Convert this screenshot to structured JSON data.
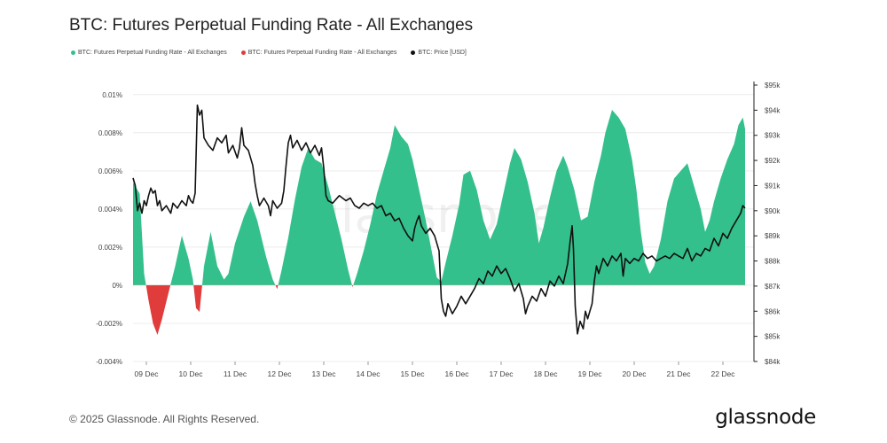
{
  "header": {
    "title": "BTC: Futures Perpetual Funding Rate - All Exchanges"
  },
  "legend": [
    {
      "label": "BTC: Futures Perpetual Funding Rate - All Exchanges",
      "color": "#33c08c"
    },
    {
      "label": "BTC: Futures Perpetual Funding Rate - All Exchanges",
      "color": "#e03c3c"
    },
    {
      "label": "BTC: Price [USD]",
      "color": "#111111"
    }
  ],
  "watermark": "glassnode",
  "footer": {
    "copyright": "© 2025 Glassnode. All Rights Reserved.",
    "brand": "glassnode"
  },
  "chart_data": {
    "type": "area",
    "x_tick_labels": [
      "09 Dec",
      "10 Dec",
      "11 Dec",
      "12 Dec",
      "13 Dec",
      "14 Dec",
      "15 Dec",
      "16 Dec",
      "17 Dec",
      "18 Dec",
      "19 Dec",
      "20 Dec",
      "21 Dec",
      "22 Dec"
    ],
    "y_left": {
      "ticks": [
        -0.004,
        -0.002,
        0,
        0.002,
        0.004,
        0.006,
        0.008,
        0.01
      ],
      "tick_labels": [
        "-0.004%",
        "-0.002%",
        "0%",
        "0.002%",
        "0.004%",
        "0.006%",
        "0.008%",
        "0.01%"
      ],
      "range": [
        -0.004,
        0.0105
      ]
    },
    "y_right": {
      "ticks": [
        84,
        85,
        86,
        87,
        88,
        89,
        90,
        91,
        92,
        93,
        94,
        95
      ],
      "tick_labels": [
        "$84k",
        "$85k",
        "$86k",
        "$87k",
        "$88k",
        "$89k",
        "$90k",
        "$91k",
        "$92k",
        "$93k",
        "$94k",
        "$95k"
      ],
      "range": [
        84,
        95
      ]
    },
    "x_range_days": [
      -0.3,
      13.7
    ],
    "series": [
      {
        "name": "BTC: Futures Perpetual Funding Rate - All Exchanges",
        "axis": "left",
        "color_positive": "#33c08c",
        "color_negative": "#e03c3c",
        "points": [
          [
            -0.3,
            0.0054
          ],
          [
            -0.15,
            0.0048
          ],
          [
            -0.05,
            0.0006
          ],
          [
            0.05,
            -0.0008
          ],
          [
            0.15,
            -0.002
          ],
          [
            0.25,
            -0.0026
          ],
          [
            0.35,
            -0.0018
          ],
          [
            0.5,
            -0.0004
          ],
          [
            0.65,
            0.001
          ],
          [
            0.8,
            0.0026
          ],
          [
            0.95,
            0.0014
          ],
          [
            1.05,
            0.0003
          ],
          [
            1.12,
            -0.0012
          ],
          [
            1.2,
            -0.0014
          ],
          [
            1.3,
            0.001
          ],
          [
            1.45,
            0.0028
          ],
          [
            1.6,
            0.001
          ],
          [
            1.75,
            0.0003
          ],
          [
            1.85,
            0.0006
          ],
          [
            2.0,
            0.0022
          ],
          [
            2.2,
            0.0036
          ],
          [
            2.35,
            0.0044
          ],
          [
            2.5,
            0.0034
          ],
          [
            2.7,
            0.0015
          ],
          [
            2.85,
            0.0003
          ],
          [
            2.95,
            -0.0002
          ],
          [
            3.05,
            0.0008
          ],
          [
            3.2,
            0.0025
          ],
          [
            3.35,
            0.0045
          ],
          [
            3.5,
            0.0062
          ],
          [
            3.65,
            0.0072
          ],
          [
            3.8,
            0.0066
          ],
          [
            3.95,
            0.0064
          ],
          [
            4.1,
            0.0052
          ],
          [
            4.25,
            0.0038
          ],
          [
            4.4,
            0.0024
          ],
          [
            4.55,
            0.0008
          ],
          [
            4.65,
            -0.0001
          ],
          [
            4.75,
            0.0006
          ],
          [
            4.9,
            0.0018
          ],
          [
            5.05,
            0.0032
          ],
          [
            5.2,
            0.0048
          ],
          [
            5.35,
            0.006
          ],
          [
            5.5,
            0.0072
          ],
          [
            5.6,
            0.0084
          ],
          [
            5.75,
            0.0078
          ],
          [
            5.9,
            0.0074
          ],
          [
            6.0,
            0.0066
          ],
          [
            6.15,
            0.005
          ],
          [
            6.3,
            0.0034
          ],
          [
            6.45,
            0.0016
          ],
          [
            6.55,
            0.0004
          ],
          [
            6.65,
            0.0002
          ],
          [
            6.75,
            0.0012
          ],
          [
            6.9,
            0.0026
          ],
          [
            7.05,
            0.0042
          ],
          [
            7.15,
            0.0058
          ],
          [
            7.3,
            0.006
          ],
          [
            7.45,
            0.005
          ],
          [
            7.6,
            0.0034
          ],
          [
            7.75,
            0.0024
          ],
          [
            7.9,
            0.0032
          ],
          [
            8.05,
            0.0048
          ],
          [
            8.2,
            0.0064
          ],
          [
            8.3,
            0.0072
          ],
          [
            8.45,
            0.0066
          ],
          [
            8.6,
            0.0054
          ],
          [
            8.75,
            0.0038
          ],
          [
            8.85,
            0.0022
          ],
          [
            8.95,
            0.003
          ],
          [
            9.1,
            0.0046
          ],
          [
            9.25,
            0.006
          ],
          [
            9.4,
            0.0068
          ],
          [
            9.5,
            0.0062
          ],
          [
            9.65,
            0.005
          ],
          [
            9.8,
            0.0034
          ],
          [
            9.95,
            0.0036
          ],
          [
            10.1,
            0.0054
          ],
          [
            10.25,
            0.0068
          ],
          [
            10.35,
            0.008
          ],
          [
            10.5,
            0.0092
          ],
          [
            10.65,
            0.0088
          ],
          [
            10.8,
            0.0082
          ],
          [
            10.95,
            0.0066
          ],
          [
            11.05,
            0.005
          ],
          [
            11.15,
            0.0028
          ],
          [
            11.25,
            0.0012
          ],
          [
            11.35,
            0.0006
          ],
          [
            11.45,
            0.001
          ],
          [
            11.6,
            0.0024
          ],
          [
            11.75,
            0.0044
          ],
          [
            11.9,
            0.0056
          ],
          [
            12.05,
            0.006
          ],
          [
            12.2,
            0.0064
          ],
          [
            12.35,
            0.0052
          ],
          [
            12.5,
            0.004
          ],
          [
            12.6,
            0.0028
          ],
          [
            12.7,
            0.0034
          ],
          [
            12.8,
            0.0044
          ],
          [
            12.95,
            0.0056
          ],
          [
            13.1,
            0.0066
          ],
          [
            13.25,
            0.0074
          ],
          [
            13.35,
            0.0084
          ],
          [
            13.45,
            0.0088
          ],
          [
            13.5,
            0.0082
          ]
        ]
      },
      {
        "name": "BTC: Price [USD]",
        "axis": "right",
        "color": "#111111",
        "points": [
          [
            -0.3,
            91.3
          ],
          [
            -0.25,
            91.0
          ],
          [
            -0.2,
            90.0
          ],
          [
            -0.15,
            90.3
          ],
          [
            -0.1,
            89.9
          ],
          [
            -0.05,
            90.4
          ],
          [
            0.0,
            90.2
          ],
          [
            0.05,
            90.6
          ],
          [
            0.1,
            90.9
          ],
          [
            0.15,
            90.7
          ],
          [
            0.2,
            90.8
          ],
          [
            0.25,
            90.2
          ],
          [
            0.3,
            90.4
          ],
          [
            0.35,
            90.0
          ],
          [
            0.45,
            90.2
          ],
          [
            0.55,
            89.9
          ],
          [
            0.6,
            90.3
          ],
          [
            0.7,
            90.1
          ],
          [
            0.8,
            90.4
          ],
          [
            0.9,
            90.2
          ],
          [
            0.95,
            90.6
          ],
          [
            1.0,
            90.4
          ],
          [
            1.05,
            90.3
          ],
          [
            1.1,
            90.7
          ],
          [
            1.15,
            94.2
          ],
          [
            1.2,
            93.8
          ],
          [
            1.25,
            94.0
          ],
          [
            1.3,
            92.9
          ],
          [
            1.4,
            92.6
          ],
          [
            1.5,
            92.4
          ],
          [
            1.6,
            92.9
          ],
          [
            1.7,
            92.7
          ],
          [
            1.8,
            93.0
          ],
          [
            1.85,
            92.3
          ],
          [
            1.95,
            92.6
          ],
          [
            2.05,
            92.1
          ],
          [
            2.1,
            92.5
          ],
          [
            2.15,
            93.3
          ],
          [
            2.2,
            92.6
          ],
          [
            2.3,
            92.4
          ],
          [
            2.4,
            91.8
          ],
          [
            2.45,
            91.1
          ],
          [
            2.5,
            90.6
          ],
          [
            2.55,
            90.2
          ],
          [
            2.65,
            90.5
          ],
          [
            2.75,
            90.2
          ],
          [
            2.8,
            89.8
          ],
          [
            2.85,
            90.4
          ],
          [
            2.95,
            90.1
          ],
          [
            3.05,
            90.3
          ],
          [
            3.1,
            90.8
          ],
          [
            3.15,
            91.8
          ],
          [
            3.2,
            92.7
          ],
          [
            3.25,
            93.0
          ],
          [
            3.3,
            92.5
          ],
          [
            3.4,
            92.8
          ],
          [
            3.5,
            92.4
          ],
          [
            3.6,
            92.7
          ],
          [
            3.7,
            92.3
          ],
          [
            3.8,
            92.6
          ],
          [
            3.9,
            92.2
          ],
          [
            3.95,
            92.5
          ],
          [
            4.0,
            91.7
          ],
          [
            4.05,
            90.6
          ],
          [
            4.1,
            90.4
          ],
          [
            4.2,
            90.3
          ],
          [
            4.35,
            90.6
          ],
          [
            4.5,
            90.4
          ],
          [
            4.6,
            90.5
          ],
          [
            4.7,
            90.2
          ],
          [
            4.8,
            90.1
          ],
          [
            4.9,
            90.3
          ],
          [
            5.0,
            90.2
          ],
          [
            5.1,
            90.3
          ],
          [
            5.2,
            90.1
          ],
          [
            5.3,
            90.2
          ],
          [
            5.4,
            89.8
          ],
          [
            5.5,
            89.9
          ],
          [
            5.6,
            89.6
          ],
          [
            5.7,
            89.7
          ],
          [
            5.8,
            89.3
          ],
          [
            5.9,
            89.0
          ],
          [
            6.0,
            88.8
          ],
          [
            6.05,
            89.3
          ],
          [
            6.1,
            89.6
          ],
          [
            6.15,
            89.8
          ],
          [
            6.2,
            89.4
          ],
          [
            6.3,
            89.1
          ],
          [
            6.4,
            89.3
          ],
          [
            6.5,
            89.0
          ],
          [
            6.6,
            88.4
          ],
          [
            6.65,
            86.5
          ],
          [
            6.7,
            86.0
          ],
          [
            6.75,
            85.8
          ],
          [
            6.8,
            86.3
          ],
          [
            6.9,
            85.9
          ],
          [
            7.0,
            86.2
          ],
          [
            7.1,
            86.6
          ],
          [
            7.2,
            86.3
          ],
          [
            7.3,
            86.6
          ],
          [
            7.4,
            86.9
          ],
          [
            7.5,
            87.3
          ],
          [
            7.6,
            87.1
          ],
          [
            7.7,
            87.6
          ],
          [
            7.8,
            87.4
          ],
          [
            7.9,
            87.8
          ],
          [
            8.0,
            87.5
          ],
          [
            8.1,
            87.7
          ],
          [
            8.2,
            87.3
          ],
          [
            8.3,
            86.8
          ],
          [
            8.4,
            87.1
          ],
          [
            8.5,
            86.5
          ],
          [
            8.55,
            85.9
          ],
          [
            8.6,
            86.2
          ],
          [
            8.7,
            86.6
          ],
          [
            8.8,
            86.4
          ],
          [
            8.9,
            86.9
          ],
          [
            9.0,
            86.6
          ],
          [
            9.1,
            87.2
          ],
          [
            9.2,
            87.0
          ],
          [
            9.3,
            87.4
          ],
          [
            9.4,
            87.1
          ],
          [
            9.5,
            87.9
          ],
          [
            9.55,
            88.7
          ],
          [
            9.6,
            89.4
          ],
          [
            9.63,
            88.5
          ],
          [
            9.67,
            86.2
          ],
          [
            9.72,
            85.1
          ],
          [
            9.78,
            85.6
          ],
          [
            9.85,
            85.3
          ],
          [
            9.9,
            86.0
          ],
          [
            9.95,
            85.7
          ],
          [
            10.05,
            86.3
          ],
          [
            10.1,
            87.2
          ],
          [
            10.15,
            87.8
          ],
          [
            10.2,
            87.5
          ],
          [
            10.3,
            88.1
          ],
          [
            10.4,
            87.8
          ],
          [
            10.5,
            88.2
          ],
          [
            10.6,
            88.0
          ],
          [
            10.7,
            88.3
          ],
          [
            10.75,
            87.4
          ],
          [
            10.8,
            88.1
          ],
          [
            10.9,
            87.9
          ],
          [
            11.0,
            88.1
          ],
          [
            11.1,
            88.0
          ],
          [
            11.2,
            88.3
          ],
          [
            11.3,
            88.1
          ],
          [
            11.4,
            88.2
          ],
          [
            11.5,
            88.0
          ],
          [
            11.6,
            88.1
          ],
          [
            11.7,
            88.2
          ],
          [
            11.8,
            88.1
          ],
          [
            11.9,
            88.3
          ],
          [
            12.0,
            88.2
          ],
          [
            12.1,
            88.1
          ],
          [
            12.2,
            88.5
          ],
          [
            12.3,
            88.0
          ],
          [
            12.4,
            88.3
          ],
          [
            12.5,
            88.2
          ],
          [
            12.6,
            88.5
          ],
          [
            12.7,
            88.4
          ],
          [
            12.8,
            88.9
          ],
          [
            12.9,
            88.6
          ],
          [
            13.0,
            89.1
          ],
          [
            13.1,
            88.9
          ],
          [
            13.2,
            89.3
          ],
          [
            13.3,
            89.6
          ],
          [
            13.4,
            89.9
          ],
          [
            13.45,
            90.2
          ],
          [
            13.5,
            90.1
          ]
        ]
      }
    ]
  }
}
